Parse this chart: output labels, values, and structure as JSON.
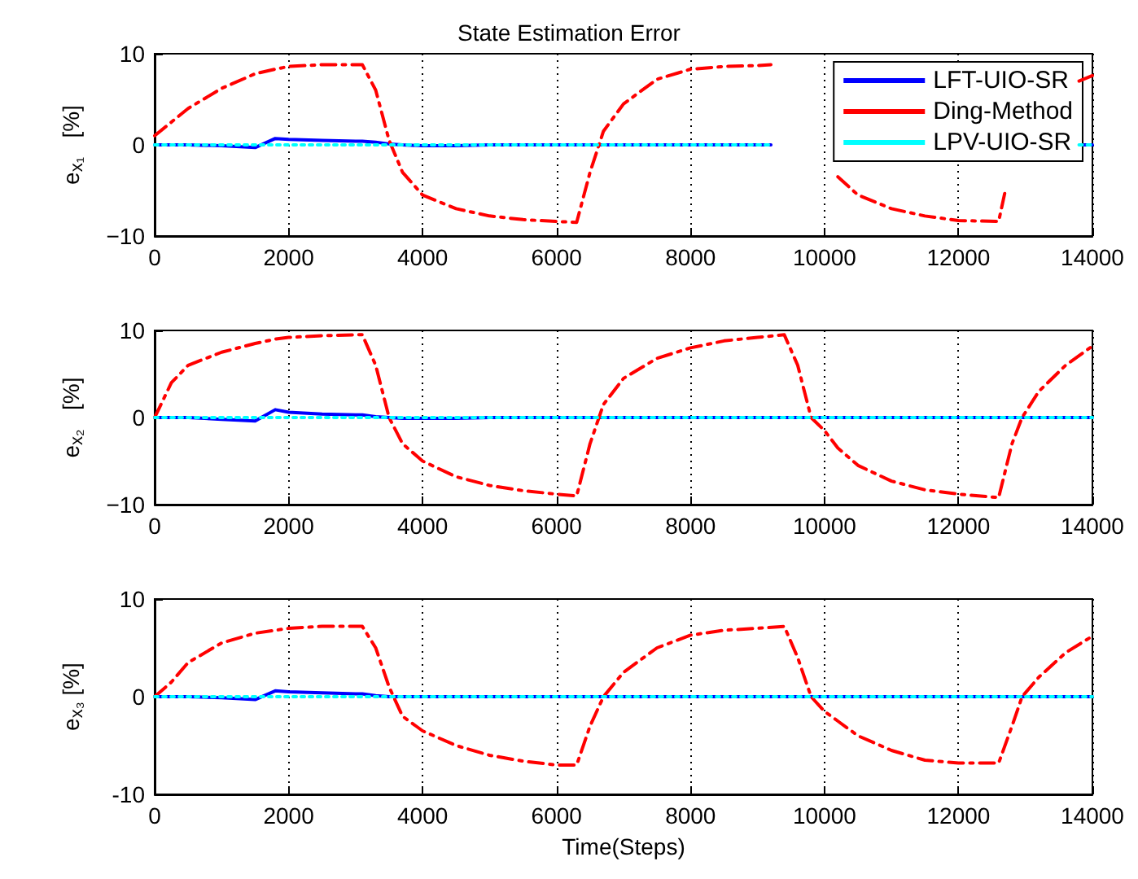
{
  "chart_data": [
    {
      "type": "line",
      "title": "State Estimation Error",
      "ylabel": "e$_{x₁}$   [%]",
      "x": [
        0,
        250,
        500,
        1000,
        1500,
        1800,
        2000,
        2500,
        3000,
        3100,
        3300,
        3500,
        3700,
        4000,
        4500,
        5000,
        5500,
        6000,
        6300,
        6500,
        6700,
        7000,
        7500,
        8000,
        8500,
        9000,
        9200,
        9400,
        9800,
        10200,
        10500,
        11000,
        11500,
        12000,
        12600,
        12700,
        13000,
        13800,
        14000
      ],
      "xlim": [
        0,
        14000
      ],
      "xticks": [
        0,
        2000,
        4000,
        6000,
        8000,
        10000,
        12000,
        14000
      ],
      "ylim": [
        -10,
        10
      ],
      "yticks": [
        {
          "value": -10,
          "label": "−10"
        },
        0,
        10
      ],
      "grid": "x",
      "legend": "top right",
      "series": [
        {
          "name": "LFT-UIO-SR",
          "color": "#0000ff",
          "line_style": "solid",
          "values": [
            0,
            0,
            0,
            -0.1,
            -0.3,
            0.7,
            0.6,
            0.5,
            0.4,
            0.4,
            0.3,
            0.1,
            0,
            -0.1,
            -0.1,
            0,
            0,
            0,
            0,
            0,
            0,
            0,
            0,
            0,
            0,
            0,
            0,
            null,
            null,
            null,
            null,
            null,
            null,
            null,
            null,
            null,
            null,
            0,
            0
          ]
        },
        {
          "name": "Ding-Method",
          "color": "#ff0000",
          "line_style": "dashed",
          "values": [
            1,
            2.5,
            4,
            6.2,
            7.8,
            8.3,
            8.6,
            8.8,
            8.8,
            8.8,
            6,
            0.5,
            -3,
            -5.5,
            -7,
            -7.8,
            -8.2,
            -8.4,
            -8.5,
            -3,
            1.5,
            4.5,
            7.2,
            8.3,
            8.6,
            8.7,
            8.8,
            null,
            null,
            -3.5,
            -5.5,
            -7,
            -7.8,
            -8.3,
            -8.4,
            -5,
            null,
            7,
            7.6
          ]
        },
        {
          "name": "LPV-UIO-SR",
          "color": "#00ffff",
          "line_style": "dotted",
          "values": [
            0,
            0,
            0,
            0,
            0,
            0,
            0,
            0,
            0,
            0,
            0,
            0,
            0,
            0,
            0,
            0,
            0,
            0,
            0,
            0,
            0,
            0,
            0,
            0,
            0,
            0,
            0,
            null,
            null,
            null,
            null,
            null,
            null,
            null,
            null,
            null,
            null,
            0,
            0
          ]
        }
      ]
    },
    {
      "type": "line",
      "ylabel": "e$_{x₂}$   [%]",
      "x": [
        0,
        250,
        500,
        1000,
        1500,
        1800,
        2000,
        2500,
        3000,
        3100,
        3300,
        3500,
        3700,
        4000,
        4500,
        5000,
        5500,
        6000,
        6300,
        6500,
        6700,
        7000,
        7500,
        8000,
        8500,
        9000,
        9400,
        9600,
        9800,
        10000,
        10200,
        10500,
        11000,
        11500,
        12000,
        12600,
        12800,
        12950,
        13200,
        13600,
        14000
      ],
      "xlim": [
        0,
        14000
      ],
      "xticks": [
        0,
        2000,
        4000,
        6000,
        8000,
        10000,
        12000,
        14000
      ],
      "ylim": [
        -10,
        10
      ],
      "yticks": [
        {
          "value": -10,
          "label": "−10"
        },
        0,
        10
      ],
      "grid": "x",
      "series": [
        {
          "color": "#0000ff",
          "line_style": "solid",
          "values": [
            0,
            0,
            0,
            -0.2,
            -0.4,
            0.9,
            0.6,
            0.4,
            0.3,
            0.3,
            0.1,
            0,
            -0.1,
            -0.1,
            -0.1,
            0,
            0,
            0,
            0,
            0,
            0,
            0,
            0,
            0,
            0,
            0,
            0,
            0,
            0,
            0,
            0,
            0,
            0,
            0,
            0,
            0,
            0,
            0,
            0,
            0,
            0
          ]
        },
        {
          "color": "#ff0000",
          "line_style": "dashed",
          "values": [
            0,
            4,
            6,
            7.5,
            8.5,
            9,
            9.2,
            9.4,
            9.5,
            9.5,
            6,
            0,
            -3,
            -5,
            -6.8,
            -7.8,
            -8.4,
            -8.8,
            -9,
            -3,
            1.5,
            4.5,
            6.8,
            8,
            8.8,
            9.2,
            9.5,
            6,
            0,
            -1.5,
            -3.5,
            -5.5,
            -7.3,
            -8.3,
            -8.8,
            -9.2,
            -3,
            0,
            3,
            6,
            8.2
          ]
        },
        {
          "color": "#00ffff",
          "line_style": "dotted",
          "values": [
            0,
            0,
            0,
            0,
            0,
            0,
            0,
            0,
            0,
            0,
            0,
            0,
            0,
            0,
            0,
            0,
            0,
            0,
            0,
            0,
            0,
            0,
            0,
            0,
            0,
            0,
            0,
            0,
            0,
            0,
            0,
            0,
            0,
            0,
            0,
            0,
            0,
            0,
            0,
            0,
            0
          ]
        }
      ]
    },
    {
      "type": "line",
      "xlabel": "Time(Steps)",
      "ylabel": "e$_{x₃}$ [%]",
      "x": [
        0,
        250,
        500,
        1000,
        1500,
        1800,
        2000,
        2500,
        3000,
        3100,
        3300,
        3500,
        3700,
        4000,
        4500,
        5000,
        5500,
        6000,
        6300,
        6500,
        6700,
        7000,
        7500,
        8000,
        8500,
        9000,
        9400,
        9600,
        9800,
        10000,
        10200,
        10500,
        11000,
        11500,
        12000,
        12600,
        12800,
        12950,
        13200,
        13600,
        14000
      ],
      "xlim": [
        0,
        14000
      ],
      "xticks": [
        0,
        2000,
        4000,
        6000,
        8000,
        10000,
        12000,
        14000
      ],
      "ylim": [
        -10,
        10
      ],
      "yticks": [
        -10,
        0,
        10
      ],
      "grid": "x",
      "series": [
        {
          "color": "#0000ff",
          "line_style": "solid",
          "values": [
            0,
            0,
            0,
            -0.1,
            -0.3,
            0.6,
            0.5,
            0.4,
            0.3,
            0.3,
            0.1,
            0,
            0,
            0,
            0,
            0,
            0,
            0,
            0,
            0,
            0,
            0,
            0,
            0,
            0,
            0,
            0,
            0,
            0,
            0,
            0,
            0,
            0,
            0,
            0,
            0,
            0,
            0,
            0,
            0,
            0
          ]
        },
        {
          "color": "#ff0000",
          "line_style": "dashed",
          "values": [
            0,
            1.5,
            3.5,
            5.5,
            6.5,
            6.8,
            7,
            7.2,
            7.2,
            7.2,
            5,
            1,
            -2,
            -3.5,
            -5,
            -6,
            -6.6,
            -7,
            -7,
            -3,
            0,
            2.5,
            5,
            6.3,
            6.8,
            7,
            7.2,
            4,
            0,
            -1.5,
            -2.5,
            -4,
            -5.5,
            -6.5,
            -6.8,
            -6.8,
            -3,
            0,
            2,
            4.5,
            6.2
          ]
        },
        {
          "color": "#00ffff",
          "line_style": "dotted",
          "values": [
            0,
            0,
            0,
            0,
            0,
            0,
            0,
            0,
            0,
            0,
            0,
            0,
            0,
            0,
            0,
            0,
            0,
            0,
            0,
            0,
            0,
            0,
            0,
            0,
            0,
            0,
            0,
            0,
            0,
            0,
            0,
            0,
            0,
            0,
            0,
            0,
            0,
            0,
            0,
            0,
            0
          ]
        }
      ]
    }
  ]
}
